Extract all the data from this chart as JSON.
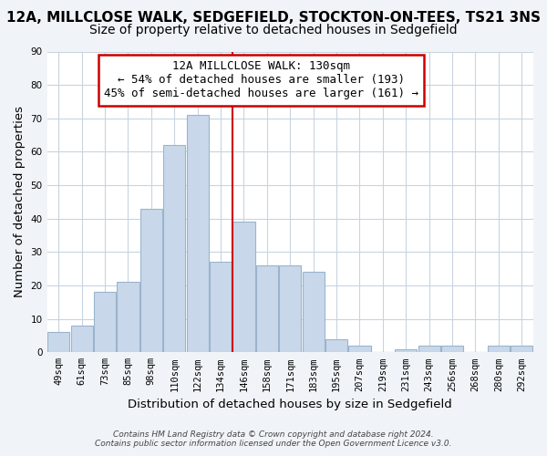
{
  "title": "12A, MILLCLOSE WALK, SEDGEFIELD, STOCKTON-ON-TEES, TS21 3NS",
  "subtitle": "Size of property relative to detached houses in Sedgefield",
  "xlabel": "Distribution of detached houses by size in Sedgefield",
  "ylabel": "Number of detached properties",
  "categories": [
    "49sqm",
    "61sqm",
    "73sqm",
    "85sqm",
    "98sqm",
    "110sqm",
    "122sqm",
    "134sqm",
    "146sqm",
    "158sqm",
    "171sqm",
    "183sqm",
    "195sqm",
    "207sqm",
    "219sqm",
    "231sqm",
    "243sqm",
    "256sqm",
    "268sqm",
    "280sqm",
    "292sqm"
  ],
  "values": [
    6,
    8,
    18,
    21,
    43,
    62,
    71,
    27,
    39,
    26,
    26,
    24,
    4,
    2,
    0,
    1,
    2,
    2,
    0,
    2,
    2
  ],
  "bar_color": "#c8d8ea",
  "bar_edgecolor": "#9ab4cc",
  "vline_x_index": 7.5,
  "vline_color": "#cc0000",
  "annotation_line1": "12A MILLCLOSE WALK: 130sqm",
  "annotation_line2": "← 54% of detached houses are smaller (193)",
  "annotation_line3": "45% of semi-detached houses are larger (161) →",
  "box_edgecolor": "#cc0000",
  "ylim": [
    0,
    90
  ],
  "yticks": [
    0,
    10,
    20,
    30,
    40,
    50,
    60,
    70,
    80,
    90
  ],
  "footer1": "Contains HM Land Registry data © Crown copyright and database right 2024.",
  "footer2": "Contains public sector information licensed under the Open Government Licence v3.0.",
  "bg_color": "#f0f4f8",
  "plot_bg_color": "#ffffff",
  "grid_color": "#c8d4e0",
  "title_fontsize": 11,
  "subtitle_fontsize": 10,
  "tick_fontsize": 7.5,
  "label_fontsize": 9.5,
  "ann_fontsize": 9,
  "footer_fontsize": 6.5
}
